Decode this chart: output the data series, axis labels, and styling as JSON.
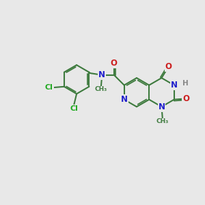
{
  "background_color": "#e8e8e8",
  "bond_color": "#3d7a3d",
  "bond_width": 1.5,
  "atom_colors": {
    "N": "#2020cc",
    "O": "#cc2020",
    "Cl": "#22aa22",
    "H": "#888888",
    "C": "#3d7a3d"
  },
  "figsize": [
    3.0,
    3.0
  ],
  "dpi": 100,
  "xlim": [
    -1.5,
    9.5
  ],
  "ylim": [
    -1.0,
    5.5
  ]
}
